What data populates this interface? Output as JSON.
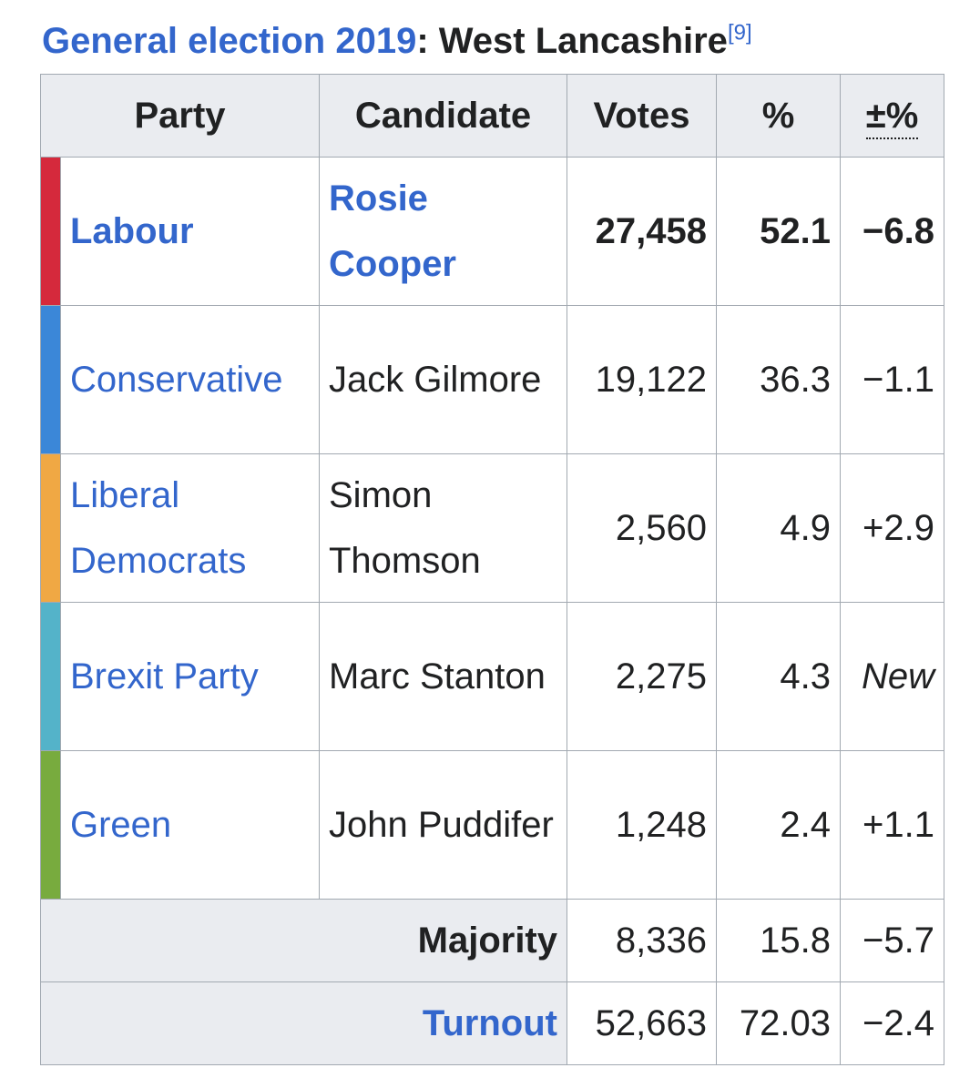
{
  "caption": {
    "link_text": "General election 2019",
    "rest": ": West Lancashire",
    "ref": "[9]"
  },
  "headers": {
    "party": "Party",
    "candidate": "Candidate",
    "votes": "Votes",
    "percent": "%",
    "change": "±%"
  },
  "rows": [
    {
      "party": "Labour",
      "candidate": "Rosie Cooper",
      "votes": "27,458",
      "percent": "52.1",
      "change": "−6.8",
      "color": "#dc241f"
    },
    {
      "party": "Conservative",
      "candidate": "Jack Gilmore",
      "votes": "19,122",
      "percent": "36.3",
      "change": "−1.1",
      "color": "#0087dc"
    },
    {
      "party": "Liberal Democrats",
      "candidate": "Simon Thomson",
      "votes": "2,560",
      "percent": "4.9",
      "change": "+2.9",
      "color": "#faa61a"
    },
    {
      "party": "Brexit Party",
      "candidate": "Marc Stanton",
      "votes": "2,275",
      "percent": "4.3",
      "change": "New",
      "color": "#12b6cf"
    },
    {
      "party": "Green",
      "candidate": "John Puddifer",
      "votes": "1,248",
      "percent": "2.4",
      "change": "+1.1",
      "color": "#6ab023"
    }
  ],
  "majority": {
    "label": "Majority",
    "votes": "8,336",
    "percent": "15.8",
    "change": "−5.7"
  },
  "turnout": {
    "label": "Turnout",
    "votes": "52,663",
    "percent": "72.03",
    "change": "−2.4"
  }
}
